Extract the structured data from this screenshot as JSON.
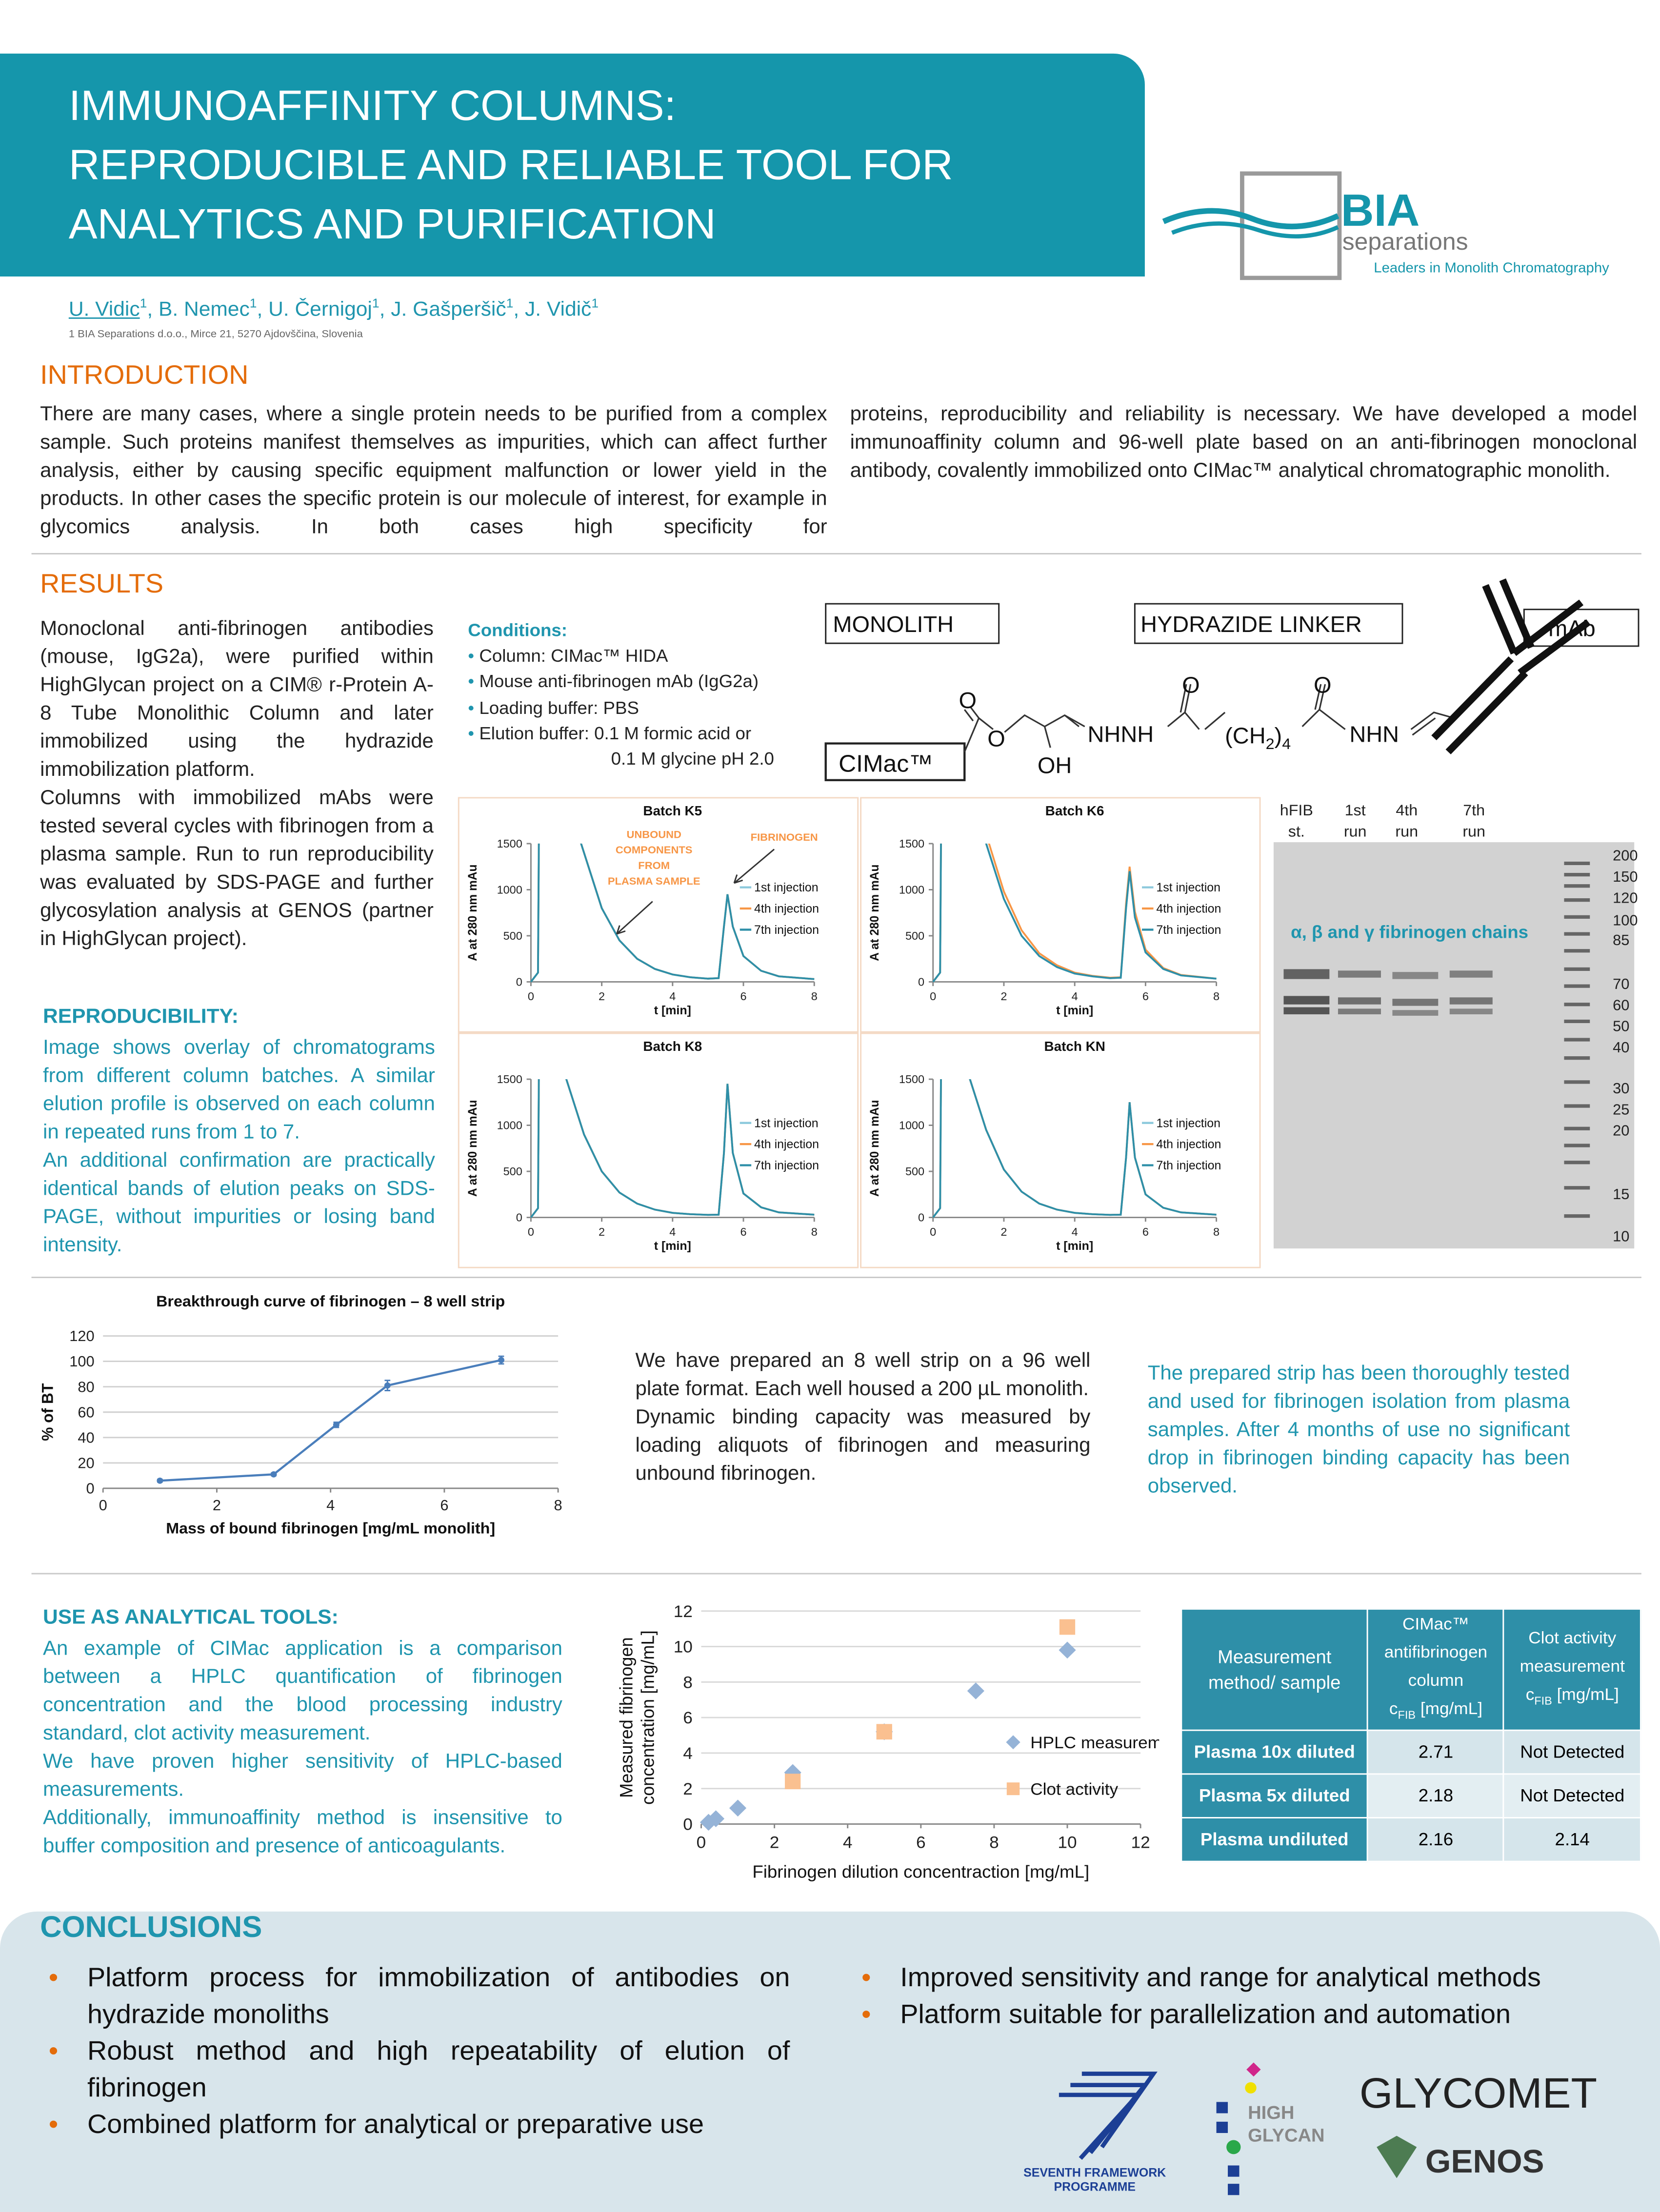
{
  "header": {
    "title_lines": [
      "IMMUNOAFFINITY COLUMNS:",
      "REPRODUCIBLE AND RELIABLE TOOL FOR",
      "ANALYTICS AND PURIFICATION"
    ],
    "logo": {
      "name": "BIA",
      "sub": "separations",
      "tagline": "Leaders in Monolith Chromatography"
    }
  },
  "authors": [
    {
      "name": "U. Vidic",
      "sup": "1"
    },
    {
      "name": ", B. Nemec",
      "sup": "1"
    },
    {
      "name": ", U. Černigoj",
      "sup": "1"
    },
    {
      "name": ", J. Gašperšič",
      "sup": "1"
    },
    {
      "name": ", J. Vidič",
      "sup": "1"
    }
  ],
  "affiliation": "1 BIA Separations d.o.o., Mirce 21, 5270 Ajdovščina, Slovenia",
  "introduction": {
    "heading": "INTRODUCTION",
    "text_left": "There are many cases, where a single protein needs to be purified from a complex sample. Such proteins manifest themselves as impurities, which can affect further analysis, either by causing specific equipment malfunction or lower yield in the products. In other cases the specific protein is our molecule of interest, for example in glycomics analysis. In both cases high specificity for",
    "text_right": "proteins, reproducibility and reliability is necessary. We have developed a model immunoaffinity column and 96-well plate based on an anti-fibrinogen monoclonal antibody, covalently immobilized onto CIMac™ analytical chromatographic monolith."
  },
  "results": {
    "heading": "RESULTS",
    "text": [
      "Monoclonal anti-fibrinogen antibodies (mouse, IgG2a), were purified within HighGlycan project on a CIM® r-Protein A-8 Tube Monolithic Column and later immobilized using the hydrazide immobilization platform.",
      "Columns with immobilized mAbs were tested several cycles with fibrinogen from a plasma sample. Run to run reproducibility was evaluated by SDS-PAGE and further glycosylation analysis at GENOS (partner in HighGlycan project)."
    ],
    "reproducibility": {
      "heading": "REPRODUCIBILITY:",
      "text": [
        "Image shows overlay of chromatograms from different column batches. A similar elution profile is observed on each column in repeated runs from 1 to 7.",
        "An additional confirmation are practically identical bands of elution peaks on SDS-PAGE, without impurities or losing band intensity."
      ]
    },
    "conditions": {
      "heading": "Conditions:",
      "items": [
        "Column: CIMac™ HIDA",
        "Mouse anti-fibrinogen mAb  (IgG2a)",
        "Loading buffer: PBS",
        "Elution buffer:  0.1 M formic acid or"
      ],
      "continuation": "0.1 M  glycine pH 2.0"
    },
    "structure": {
      "monolith": "MONOLITH",
      "linker": "HYDRAZIDE LINKER",
      "mab": "mAb",
      "cimac": "CIMac™",
      "o1": "O",
      "o2": "O",
      "oh": "OH",
      "nhnh": "NHNH",
      "ch2": [
        "(CH",
        "2",
        ")",
        "4"
      ],
      "o3": "O",
      "o4": "O",
      "nhn": "NHN"
    },
    "gel": {
      "lanes": [
        [
          "hFIB",
          "st."
        ],
        [
          "1st",
          "run"
        ],
        [
          "4th",
          "run"
        ],
        [
          "7th",
          "run"
        ]
      ],
      "annotation": "α, β and γ fibrinogen chains",
      "ladder": [
        "200",
        "150",
        "120",
        "100",
        "85",
        "70",
        "60",
        "50",
        "40",
        "30",
        "25",
        "20",
        "15",
        "10"
      ]
    }
  },
  "chart_data": [
    {
      "type": "line",
      "title": "Batch K5",
      "xlabel": "t [min]",
      "ylabel": "A at 280 nm mAu",
      "xlim": [
        0,
        8
      ],
      "ylim": [
        0,
        1500
      ],
      "xticks": [
        0,
        2,
        4,
        6,
        8
      ],
      "yticks": [
        0,
        500,
        1000,
        1500
      ],
      "legend": "right",
      "x": [
        0,
        0.2,
        0.25,
        1,
        1.5,
        2,
        2.5,
        3,
        3.5,
        4,
        4.5,
        5,
        5.3,
        5.45,
        5.55,
        5.7,
        6,
        6.5,
        7,
        8
      ],
      "series": [
        {
          "name": "1st injection",
          "color": "#8cc9dc",
          "values": [
            0,
            100,
            3000,
            2000,
            1400,
            800,
            450,
            250,
            140,
            80,
            50,
            35,
            40,
            600,
            950,
            600,
            280,
            120,
            60,
            30
          ]
        },
        {
          "name": "4th injection",
          "color": "#f79646",
          "values": [
            0,
            100,
            3000,
            2000,
            1400,
            800,
            450,
            250,
            140,
            80,
            50,
            35,
            40,
            600,
            950,
            600,
            280,
            120,
            60,
            30
          ]
        },
        {
          "name": "7th injection",
          "color": "#2e8fa8",
          "values": [
            0,
            100,
            3000,
            2000,
            1400,
            800,
            450,
            250,
            140,
            80,
            50,
            35,
            40,
            600,
            950,
            600,
            280,
            120,
            60,
            30
          ]
        }
      ],
      "annotations": [
        {
          "lines": [
            "UNBOUND",
            "COMPONENTS",
            "FROM",
            "PLASMA SAMPLE"
          ]
        },
        {
          "lines": [
            "FIBRINOGEN"
          ]
        }
      ]
    },
    {
      "type": "line",
      "title": "Batch K6",
      "xlabel": "t [min]",
      "ylabel": "A at 280 nm mAu",
      "xlim": [
        0,
        8
      ],
      "ylim": [
        0,
        1500
      ],
      "xticks": [
        0,
        2,
        4,
        6,
        8
      ],
      "yticks": [
        0,
        500,
        1000,
        1500
      ],
      "legend": "right",
      "x": [
        0,
        0.2,
        0.25,
        1,
        1.5,
        2,
        2.5,
        3,
        3.5,
        4,
        4.5,
        5,
        5.3,
        5.45,
        5.55,
        5.7,
        6,
        6.5,
        7,
        8
      ],
      "series": [
        {
          "name": "1st injection",
          "color": "#8cc9dc",
          "values": [
            0,
            100,
            3000,
            2200,
            1500,
            900,
            500,
            280,
            160,
            90,
            60,
            40,
            45,
            800,
            1200,
            700,
            320,
            140,
            70,
            35
          ]
        },
        {
          "name": "4th injection",
          "color": "#f79646",
          "values": [
            0,
            100,
            3000,
            2300,
            1600,
            980,
            560,
            310,
            180,
            100,
            65,
            45,
            50,
            850,
            1250,
            760,
            350,
            150,
            75,
            35
          ]
        },
        {
          "name": "7th injection",
          "color": "#2e8fa8",
          "values": [
            0,
            100,
            3000,
            2200,
            1500,
            900,
            500,
            280,
            160,
            90,
            60,
            40,
            45,
            800,
            1200,
            700,
            320,
            140,
            70,
            35
          ]
        }
      ]
    },
    {
      "type": "line",
      "title": "Batch K8",
      "xlabel": "t [min]",
      "ylabel": "A at 280 nm mAu",
      "xlim": [
        0,
        8
      ],
      "ylim": [
        0,
        1500
      ],
      "xticks": [
        0,
        2,
        4,
        6,
        8
      ],
      "yticks": [
        0,
        500,
        1000,
        1500
      ],
      "legend": "right",
      "x": [
        0,
        0.2,
        0.25,
        1,
        1.5,
        2,
        2.5,
        3,
        3.5,
        4,
        4.5,
        5,
        5.3,
        5.45,
        5.55,
        5.7,
        6,
        6.5,
        7,
        8
      ],
      "series": [
        {
          "name": "1st injection",
          "color": "#8cc9dc",
          "values": [
            0,
            100,
            3000,
            1500,
            900,
            500,
            270,
            150,
            85,
            50,
            35,
            28,
            30,
            700,
            1450,
            700,
            260,
            110,
            55,
            30
          ]
        },
        {
          "name": "4th injection",
          "color": "#f79646",
          "values": [
            0,
            100,
            3000,
            1500,
            900,
            500,
            270,
            150,
            85,
            50,
            35,
            28,
            30,
            700,
            1450,
            700,
            260,
            110,
            55,
            30
          ]
        },
        {
          "name": "7th injection",
          "color": "#2e8fa8",
          "values": [
            0,
            100,
            3000,
            1500,
            900,
            500,
            270,
            150,
            85,
            50,
            35,
            28,
            30,
            700,
            1450,
            700,
            260,
            110,
            55,
            30
          ]
        }
      ]
    },
    {
      "type": "line",
      "title": "Batch KN",
      "xlabel": "t [min]",
      "ylabel": "A at 280 nm mAu",
      "xlim": [
        0,
        8
      ],
      "ylim": [
        0,
        1500
      ],
      "xticks": [
        0,
        2,
        4,
        6,
        8
      ],
      "yticks": [
        0,
        500,
        1000,
        1500
      ],
      "legend": "right",
      "x": [
        0,
        0.2,
        0.25,
        1,
        1.5,
        2,
        2.5,
        3,
        3.5,
        4,
        4.5,
        5,
        5.3,
        5.45,
        5.55,
        5.7,
        6,
        6.5,
        7,
        8
      ],
      "series": [
        {
          "name": "1st injection",
          "color": "#8cc9dc",
          "values": [
            0,
            100,
            3000,
            1550,
            950,
            520,
            280,
            150,
            85,
            50,
            35,
            28,
            30,
            650,
            1250,
            650,
            250,
            105,
            55,
            30
          ]
        },
        {
          "name": "4th injection",
          "color": "#f79646",
          "values": [
            0,
            100,
            3000,
            1550,
            950,
            520,
            280,
            150,
            85,
            50,
            35,
            28,
            30,
            650,
            1250,
            650,
            250,
            105,
            55,
            30
          ]
        },
        {
          "name": "7th injection",
          "color": "#2e8fa8",
          "values": [
            0,
            100,
            3000,
            1550,
            950,
            520,
            280,
            150,
            85,
            50,
            35,
            28,
            30,
            650,
            1250,
            650,
            250,
            105,
            55,
            30
          ]
        }
      ]
    },
    {
      "type": "line",
      "title": "Breakthrough curve of fibrinogen – 8 well strip",
      "xlabel": "Mass of bound fibrinogen [mg/mL monolith]",
      "ylabel": "% of BT",
      "xlim": [
        0,
        8
      ],
      "ylim": [
        0,
        120
      ],
      "xticks": [
        0,
        2,
        4,
        6,
        8
      ],
      "yticks": [
        0,
        20,
        40,
        60,
        80,
        100,
        120
      ],
      "grid": true,
      "x": [
        1,
        3,
        4.1,
        5,
        7
      ],
      "series": [
        {
          "color": "#4a7ebb",
          "values": [
            6,
            11,
            50,
            81,
            101
          ],
          "errors": [
            1,
            1,
            2,
            4,
            3
          ]
        }
      ]
    },
    {
      "type": "scatter",
      "xlabel": "Fibrinogen dilution concentraction [mg/mL]",
      "ylabel": [
        "Measured fibrinogen",
        "concentration [mg/mL]"
      ],
      "xlim": [
        0,
        12
      ],
      "ylim": [
        0,
        12
      ],
      "xticks": [
        0,
        2,
        4,
        6,
        8,
        10,
        12
      ],
      "yticks": [
        0,
        2,
        4,
        6,
        8,
        10,
        12
      ],
      "grid": true,
      "legend": "right",
      "series": [
        {
          "name": "HPLC measurement",
          "color": "#95b3d7",
          "marker": "diamond",
          "x": [
            0.2,
            0.4,
            1,
            2.5,
            5,
            7.5,
            10
          ],
          "values": [
            0.1,
            0.3,
            0.9,
            2.9,
            5.2,
            7.5,
            9.8
          ]
        },
        {
          "name": "Clot activity",
          "color": "#fac090",
          "marker": "square",
          "x": [
            2.5,
            5,
            10
          ],
          "values": [
            2.4,
            5.2,
            11.1
          ]
        }
      ]
    }
  ],
  "middle": {
    "text": "We have prepared an 8 well strip on a 96 well plate format. Each well housed a 200 µL monolith.",
    "text2": "Dynamic binding capacity was measured by loading aliquots of fibrinogen and measuring unbound fibrinogen.",
    "side": "The prepared strip has been thoroughly tested and used for fibrinogen isolation from plasma samples. After 4 months of use no significant drop in fibrinogen binding capacity has been observed."
  },
  "analytical": {
    "heading": "USE AS ANALYTICAL TOOLS:",
    "text": [
      "An example of CIMac application is a comparison between a HPLC quantification of fibrinogen concentration and the blood processing industry standard, clot activity measurement.",
      "We have proven higher sensitivity of HPLC-based measurements.",
      "Additionally, immunoaffinity method is insensitive to buffer composition and presence of anticoagulants."
    ]
  },
  "table": {
    "header": [
      "Measurement method/ sample",
      "CIMac™ antifibrinogen column",
      "Clot activity measurement"
    ],
    "unit": {
      "symbol": "c",
      "sub": "FIB",
      "unit": "[mg/mL]"
    },
    "rows": [
      [
        "Plasma 10x diluted",
        2.71,
        "Not Detected"
      ],
      [
        "Plasma 5x diluted",
        2.18,
        "Not Detected"
      ],
      [
        "Plasma undiluted",
        2.16,
        2.14
      ]
    ]
  },
  "conclusions": {
    "heading": "CONCLUSIONS",
    "left": [
      "Platform process for immobilization of antibodies on hydrazide monoliths",
      "Robust method and high repeatability of elution of fibrinogen",
      "Combined platform for analytical or preparative use"
    ],
    "right": [
      "Improved sensitivity and range for analytical methods",
      "Platform suitable for parallelization and automation"
    ]
  },
  "logos": {
    "fp7": [
      "SEVENTH FRAMEWORK",
      "PROGRAMME"
    ],
    "highglycan": [
      "HIGH",
      "GLYCAN"
    ],
    "glycomet": "GLYCOMET",
    "genos": "GENOS"
  }
}
